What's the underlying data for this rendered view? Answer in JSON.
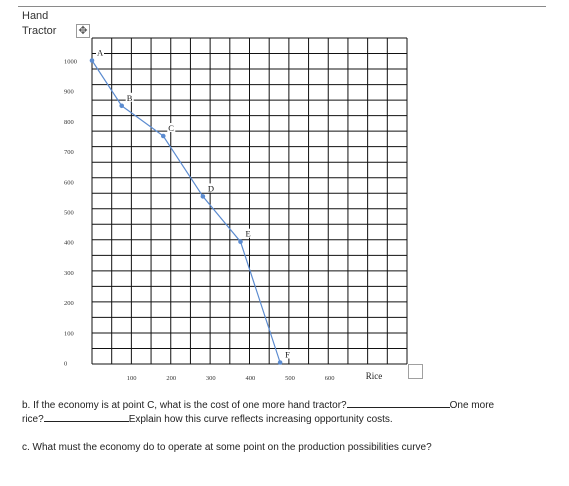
{
  "chart_data": {
    "type": "line",
    "ylabel": [
      "Hand",
      "Tractor"
    ],
    "xlabel": "Rice",
    "xlim": [
      0,
      800
    ],
    "ylim": [
      0,
      1000
    ],
    "x_ticks": [
      "100",
      "200",
      "300",
      "400",
      "500",
      "600"
    ],
    "y_ticks": [
      "1000",
      "900",
      "800",
      "700",
      "600",
      "500",
      "400",
      "300",
      "200",
      "100",
      "0"
    ],
    "series": [
      {
        "points": [
          {
            "label": "A",
            "x": 0,
            "y": 1000
          },
          {
            "label": "B",
            "x": 75,
            "y": 850
          },
          {
            "label": "C",
            "x": 180,
            "y": 750
          },
          {
            "label": "D",
            "x": 280,
            "y": 550
          },
          {
            "label": "E",
            "x": 375,
            "y": 400
          },
          {
            "label": "F",
            "x": 475,
            "y": 0
          }
        ]
      }
    ],
    "grid": true,
    "line_color": "#5b8bd0"
  },
  "question_b": {
    "line1": "b. If the economy is at point C, what is the cost of one more hand tractor?",
    "line1_end": "One more",
    "line2_start": "rice?",
    "line2_end": "Explain how this curve reflects increasing opportunity costs."
  },
  "question_c": {
    "text": "c. What must the economy do to operate at some point on the production possibilities curve?"
  },
  "icons": {
    "move": "move-handle-icon",
    "resize": "resize-handle-icon"
  }
}
